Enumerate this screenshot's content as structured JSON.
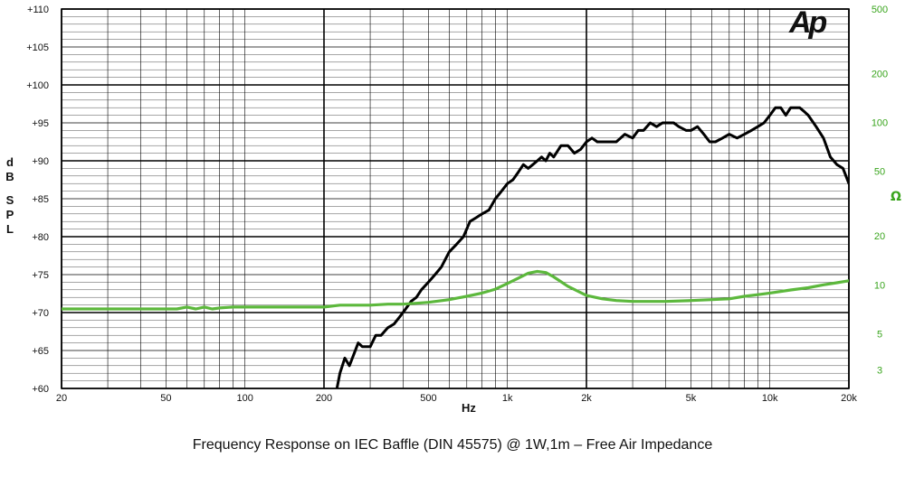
{
  "caption": "Frequency Response on IEC Baffle (DIN 45575)  @ 1W,1m – Free  Air Impedance",
  "logo_text": "Ap",
  "chart_data": {
    "type": "line",
    "xlabel": "Hz",
    "ylabel_letters": [
      "d",
      "B",
      "S",
      "P",
      "L"
    ],
    "y2label": "Ω",
    "xscale": "log",
    "xlim": [
      20,
      20000
    ],
    "ylim": [
      60,
      110
    ],
    "y2scale": "log",
    "y2lim": [
      2.3,
      500
    ],
    "grid": true,
    "x_ticks": [
      {
        "v": 20,
        "label": "20"
      },
      {
        "v": 50,
        "label": "50"
      },
      {
        "v": 100,
        "label": "100"
      },
      {
        "v": 200,
        "label": "200"
      },
      {
        "v": 500,
        "label": "500"
      },
      {
        "v": 1000,
        "label": "1k"
      },
      {
        "v": 2000,
        "label": "2k"
      },
      {
        "v": 5000,
        "label": "5k"
      },
      {
        "v": 10000,
        "label": "10k"
      },
      {
        "v": 20000,
        "label": "20k"
      }
    ],
    "y_ticks": [
      {
        "v": 110,
        "label": "+110"
      },
      {
        "v": 105,
        "label": "+105"
      },
      {
        "v": 100,
        "label": "+100"
      },
      {
        "v": 95,
        "label": "+95"
      },
      {
        "v": 90,
        "label": "+90"
      },
      {
        "v": 85,
        "label": "+85"
      },
      {
        "v": 80,
        "label": "+80"
      },
      {
        "v": 75,
        "label": "+75"
      },
      {
        "v": 70,
        "label": "+70"
      },
      {
        "v": 65,
        "label": "+65"
      },
      {
        "v": 60,
        "label": "+60"
      }
    ],
    "y2_ticks": [
      {
        "v": 500,
        "label": "500"
      },
      {
        "v": 200,
        "label": "200"
      },
      {
        "v": 100,
        "label": "100"
      },
      {
        "v": 50,
        "label": "50"
      },
      {
        "v": 20,
        "label": "20"
      },
      {
        "v": 10,
        "label": "10"
      },
      {
        "v": 5,
        "label": "5"
      },
      {
        "v": 3,
        "label": "3"
      }
    ],
    "colors": {
      "spl": "#000000",
      "impedance": "#5cb83c",
      "grid": "#000000",
      "right_axis": "#3aa51e"
    },
    "series": [
      {
        "axis": "left",
        "x": [
          224,
          230,
          240,
          250,
          260,
          270,
          280,
          300,
          315,
          330,
          350,
          370,
          390,
          410,
          430,
          450,
          470,
          500,
          530,
          560,
          600,
          640,
          680,
          720,
          760,
          800,
          850,
          900,
          950,
          1000,
          1050,
          1100,
          1150,
          1200,
          1250,
          1300,
          1350,
          1400,
          1450,
          1500,
          1600,
          1700,
          1800,
          1900,
          2000,
          2100,
          2200,
          2300,
          2400,
          2500,
          2600,
          2700,
          2800,
          3000,
          3150,
          3300,
          3500,
          3700,
          3900,
          4100,
          4300,
          4500,
          4800,
          5000,
          5300,
          5600,
          5900,
          6200,
          6600,
          7000,
          7500,
          8000,
          8500,
          9000,
          9500,
          10000,
          10500,
          11000,
          11500,
          12000,
          12500,
          13000,
          13500,
          14000,
          15000,
          16000,
          17000,
          17500,
          18000,
          19000,
          20000
        ],
        "y": [
          60,
          62,
          64,
          63,
          64.5,
          66,
          65.5,
          65.5,
          67,
          67,
          68,
          68.5,
          69.5,
          70.5,
          71.5,
          72,
          73,
          74,
          75,
          76,
          78,
          79,
          80,
          82,
          82.5,
          83,
          83.5,
          85,
          86,
          87,
          87.5,
          88.5,
          89.5,
          89,
          89.5,
          90,
          90.5,
          90,
          91,
          90.5,
          92,
          92,
          91,
          91.5,
          92.5,
          93,
          92.5,
          92.5,
          92.5,
          92.5,
          92.5,
          93,
          93.5,
          93,
          94,
          94,
          95,
          94.5,
          95,
          95,
          95,
          94.5,
          94,
          94,
          94.5,
          93.5,
          92.5,
          92.5,
          93,
          93.5,
          93,
          93.5,
          94,
          94.5,
          95,
          96,
          97,
          97,
          96,
          97,
          97,
          97,
          96.5,
          96,
          94.5,
          93,
          90.5,
          90,
          89.5,
          89,
          87
        ]
      },
      {
        "axis": "right",
        "x": [
          20,
          40,
          55,
          60,
          65,
          70,
          75,
          80,
          90,
          100,
          150,
          200,
          230,
          250,
          300,
          350,
          400,
          450,
          500,
          600,
          700,
          800,
          900,
          1000,
          1100,
          1200,
          1300,
          1400,
          1500,
          1700,
          2000,
          2300,
          2600,
          3000,
          3500,
          4000,
          5000,
          6000,
          7000,
          8000,
          9000,
          10000,
          12000,
          14000,
          16000,
          18000,
          20000
        ],
        "y": [
          7.1,
          7.1,
          7.1,
          7.3,
          7.1,
          7.3,
          7.1,
          7.2,
          7.3,
          7.3,
          7.3,
          7.3,
          7.5,
          7.5,
          7.5,
          7.6,
          7.6,
          7.7,
          7.8,
          8.1,
          8.5,
          8.9,
          9.4,
          10.2,
          11.0,
          11.8,
          12.1,
          11.9,
          11.2,
          9.8,
          8.6,
          8.2,
          8.0,
          7.9,
          7.9,
          7.9,
          8.0,
          8.1,
          8.2,
          8.5,
          8.7,
          8.9,
          9.3,
          9.6,
          10.0,
          10.3,
          10.6
        ]
      }
    ]
  }
}
